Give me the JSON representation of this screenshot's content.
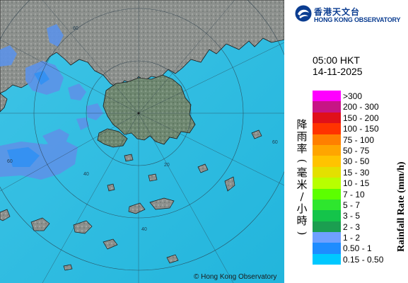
{
  "header": {
    "org_name_zh": "香港天文台",
    "org_name_en": "HONG KONG OBSERVATORY"
  },
  "timestamp": {
    "time": "05:00 HKT",
    "date": "14-11-2025"
  },
  "legend": {
    "title_zh": "降雨率(毫米/小時)",
    "title_en": "Rainfall Rate (mm/h)",
    "items": [
      {
        "label": ">300",
        "color": "#ff00ff"
      },
      {
        "label": "200 - 300",
        "color": "#c71585"
      },
      {
        "label": "150 - 200",
        "color": "#e0101a"
      },
      {
        "label": "100 - 150",
        "color": "#ff3300"
      },
      {
        "label": "75 - 100",
        "color": "#ff7f00"
      },
      {
        "label": "50 - 75",
        "color": "#ffa500"
      },
      {
        "label": "30 - 50",
        "color": "#ffc300"
      },
      {
        "label": "15 - 30",
        "color": "#e3e000"
      },
      {
        "label": "10 - 15",
        "color": "#b8ff00"
      },
      {
        "label": "7 - 10",
        "color": "#5cff00"
      },
      {
        "label": "5 - 7",
        "color": "#2ee62e"
      },
      {
        "label": "3 - 5",
        "color": "#14c44a"
      },
      {
        "label": "2 - 3",
        "color": "#1b9e50"
      },
      {
        "label": "1 - 2",
        "color": "#6fa0ff"
      },
      {
        "label": "0.50 - 1",
        "color": "#1e8cff"
      },
      {
        "label": "0.15 - 0.50",
        "color": "#00c8ff"
      }
    ]
  },
  "map": {
    "range_ring_labels": [
      "60",
      "60",
      "60",
      "40",
      "20",
      "40"
    ],
    "sea_color": "#30bfe0",
    "land_color": "#8a8f8c"
  },
  "copyright": "© Hong Kong Observatory"
}
